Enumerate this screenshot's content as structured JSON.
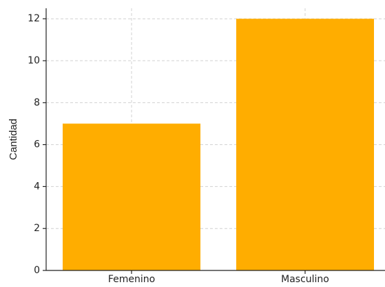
{
  "chart_data": {
    "type": "bar",
    "ylabel": "Cantidad",
    "categories": [
      "Femenino",
      "Masculino"
    ],
    "values": [
      7,
      12
    ],
    "color": "#ffad00",
    "ylim": [
      0,
      12.5
    ],
    "yticks": [
      0,
      2,
      4,
      6,
      8,
      10,
      12
    ],
    "grid": true
  }
}
